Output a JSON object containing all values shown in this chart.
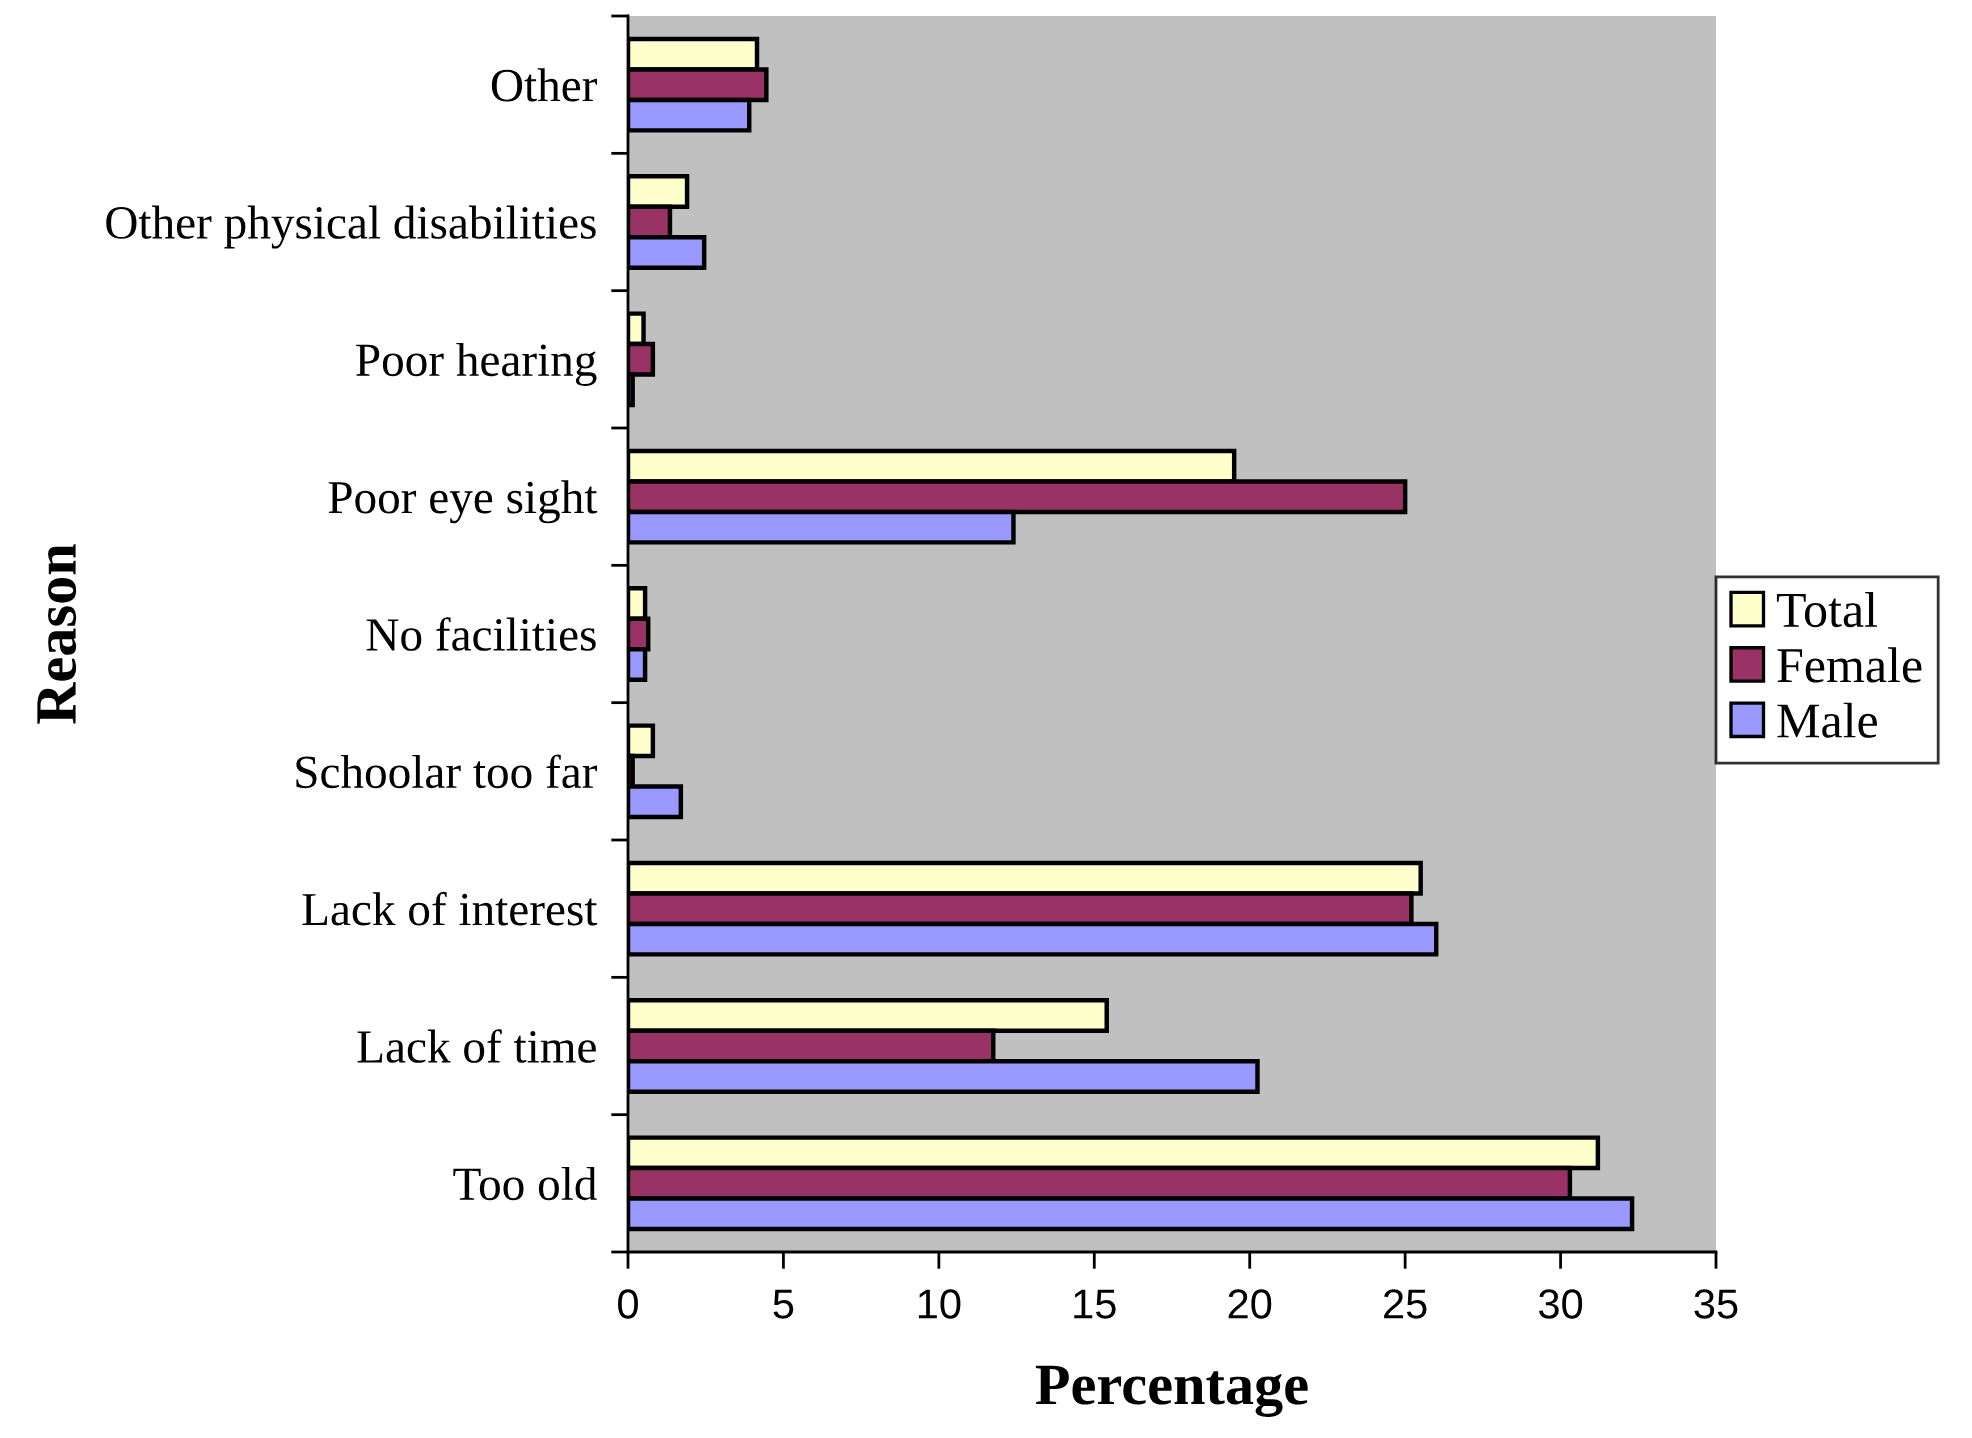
{
  "chart_data": {
    "type": "bar",
    "orientation": "horizontal",
    "categories": [
      "Other",
      "Other physical disabilities",
      "Poor hearing",
      "Poor eye sight",
      "No facilities",
      "Schoolar too far",
      "Lack of interest",
      "Lack of time",
      "Too old"
    ],
    "series": [
      {
        "name": "Total",
        "color": "#ffffcc",
        "values": [
          4.15,
          1.9,
          0.5,
          19.5,
          0.55,
          0.8,
          25.5,
          15.4,
          31.2
        ]
      },
      {
        "name": "Female",
        "color": "#993366",
        "values": [
          4.45,
          1.35,
          0.8,
          25.0,
          0.65,
          0.15,
          25.2,
          11.75,
          30.3
        ]
      },
      {
        "name": "Male",
        "color": "#9999ff",
        "values": [
          3.9,
          2.45,
          0.15,
          12.4,
          0.55,
          1.7,
          26.0,
          20.25,
          32.3
        ]
      }
    ],
    "xlim": [
      0,
      35
    ],
    "xticks": [
      0,
      5,
      10,
      15,
      20,
      25,
      30,
      35
    ],
    "xlabel": "Percentage",
    "ylabel": "Reason",
    "legend": "right"
  }
}
